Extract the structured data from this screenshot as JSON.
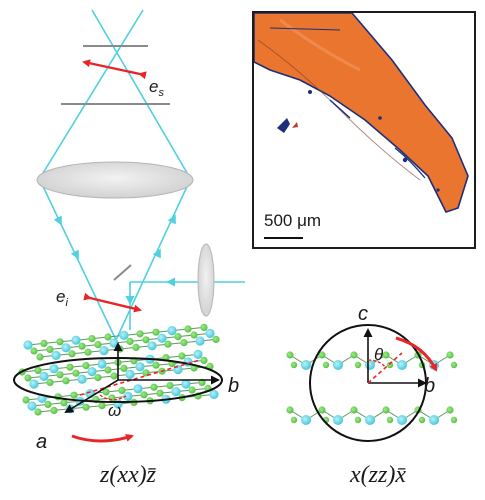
{
  "labels": {
    "es_base": "e",
    "es_sub": "s",
    "ei_base": "e",
    "ei_sub": "i",
    "axis_b": "b",
    "axis_a": "a",
    "omega": "ω",
    "axis_c": "c",
    "axis_b2": "b",
    "theta": "θ"
  },
  "inset": {
    "scale_bar": "500 μm"
  },
  "captions": {
    "left": "z(xx)z̄",
    "right": "x(zz)x̄"
  },
  "colors": {
    "beam": "#4fd1e0",
    "arrow": "#e8262a",
    "lens": "#dcdcdc",
    "crystal": "#e9752f",
    "atom_green": "#7ed46a",
    "atom_cyan": "#6fdcec"
  }
}
